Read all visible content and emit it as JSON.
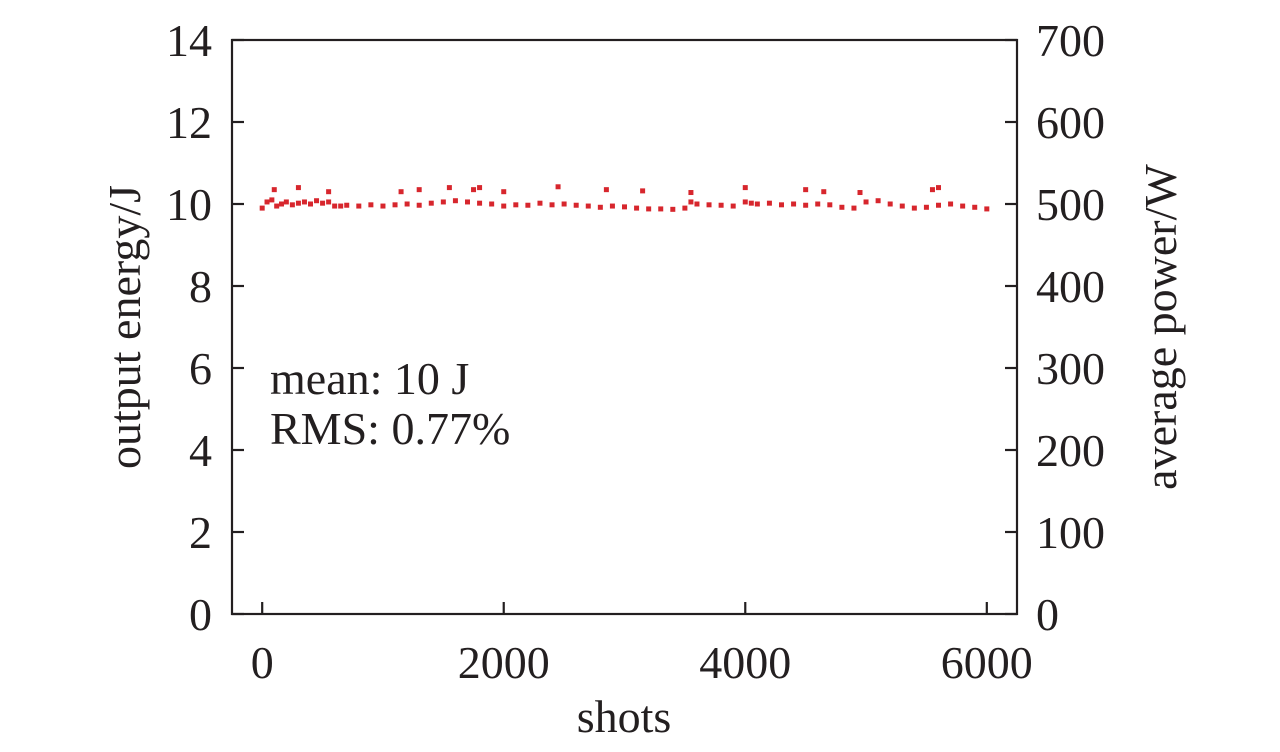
{
  "chart_data": {
    "type": "scatter",
    "title": "",
    "xlabel": "shots",
    "ylabel": "output energy/J",
    "y2label": "average power/W",
    "xlim": [
      -250,
      6250
    ],
    "ylim": [
      0,
      14
    ],
    "y2lim": [
      0,
      700
    ],
    "x_ticks": [
      0,
      2000,
      4000,
      6000
    ],
    "x_tick_labels": [
      "0",
      "2000",
      "4000",
      "6000"
    ],
    "y_ticks": [
      0,
      2,
      4,
      6,
      8,
      10,
      12,
      14
    ],
    "y_tick_labels": [
      "0",
      "2",
      "4",
      "6",
      "8",
      "10",
      "12",
      "14"
    ],
    "y2_ticks": [
      0,
      100,
      200,
      300,
      400,
      500,
      600,
      700
    ],
    "y2_tick_labels": [
      "0",
      "100",
      "200",
      "300",
      "400",
      "500",
      "600",
      "700"
    ],
    "grid": false,
    "annotations": [
      "mean: 10 J",
      "RMS: 0.77%"
    ],
    "series_color": "#d7262d",
    "series": [
      {
        "x": [
          0,
          40,
          80,
          120,
          160,
          200,
          250,
          300,
          350,
          400,
          450,
          500,
          550,
          600,
          650,
          700,
          800,
          900,
          1000,
          1100,
          1200,
          1300,
          1400,
          1500,
          1600,
          1700,
          1800,
          1900,
          2000,
          2100,
          2200,
          2300,
          2400,
          2500,
          2600,
          2700,
          2800,
          2900,
          3000,
          3100,
          3200,
          3300,
          3400,
          3500,
          3550,
          3600,
          3700,
          3800,
          3900,
          4000,
          4050,
          4100,
          4200,
          4300,
          4400,
          4500,
          4600,
          4700,
          4800,
          4900,
          5000,
          5100,
          5200,
          5300,
          5400,
          5500,
          5600,
          5700,
          5800,
          5900,
          6000,
          100,
          300,
          550,
          1150,
          1300,
          1550,
          1750,
          1800,
          2000,
          2450,
          2850,
          3150,
          3550,
          4000,
          4500,
          4650,
          4950,
          5550,
          5600
        ],
        "y": [
          9.9,
          10.05,
          10.1,
          9.95,
          10.0,
          10.05,
          9.98,
          10.02,
          10.05,
          10.0,
          10.08,
          10.02,
          10.05,
          9.95,
          9.95,
          9.97,
          9.95,
          9.98,
          9.95,
          9.98,
          10.0,
          9.97,
          10.02,
          10.05,
          10.08,
          10.05,
          10.02,
          10.0,
          9.95,
          9.98,
          9.97,
          10.02,
          9.98,
          10.0,
          9.97,
          9.95,
          9.92,
          9.95,
          9.93,
          9.9,
          9.88,
          9.88,
          9.87,
          9.9,
          10.05,
          10.0,
          9.98,
          9.97,
          9.95,
          10.05,
          10.02,
          10.0,
          10.02,
          9.98,
          10.0,
          9.97,
          10.0,
          9.98,
          9.92,
          9.9,
          10.05,
          10.08,
          10.0,
          9.95,
          9.9,
          9.92,
          9.97,
          10.0,
          9.95,
          9.92,
          9.88,
          10.35,
          10.4,
          10.3,
          10.3,
          10.35,
          10.4,
          10.35,
          10.4,
          10.3,
          10.42,
          10.35,
          10.32,
          10.28,
          10.4,
          10.35,
          10.3,
          10.28,
          10.35,
          10.4
        ]
      }
    ]
  }
}
